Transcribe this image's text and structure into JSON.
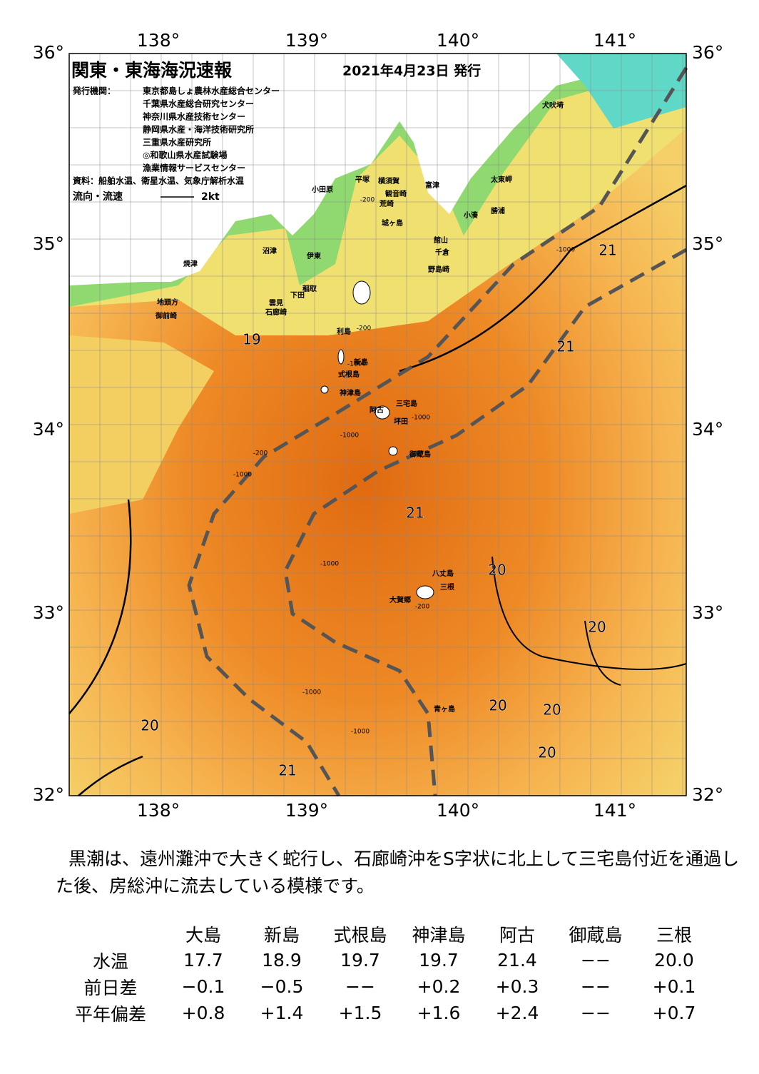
{
  "header": {
    "title": "関東・東海海況速報",
    "date": "2021年4月23日 発行",
    "issuer_label": "発行機関：",
    "issuers": [
      "東京都島しょ農林水産総合センター",
      "千葉県水産総合研究センター",
      "神奈川県水産技術センター",
      "静岡県水産・海洋技術研究所",
      "三重県水産研究所",
      "◎和歌山県水産試験場",
      "漁業情報サービスセンター"
    ],
    "source": "資料：船舶水温、衛星水温、気象庁解析水温",
    "legend_label": "流向・流速",
    "legend_scale": "2kt"
  },
  "map": {
    "lon_labels": [
      "138°",
      "139°",
      "140°",
      "141°"
    ],
    "lat_labels": [
      "36°",
      "35°",
      "34°",
      "33°",
      "32°"
    ],
    "places": [
      "犬吠埼",
      "太東岬",
      "勝浦",
      "小湊",
      "富津",
      "横須賀",
      "観音崎",
      "荒崎",
      "平塚",
      "小田原",
      "館山",
      "千倉",
      "野島崎",
      "沼津",
      "伊東",
      "焼津",
      "稲取",
      "下田",
      "雲見",
      "石廊崎",
      "地頭方",
      "御前崎",
      "利島",
      "新島",
      "式根島",
      "神津島",
      "三宅島",
      "阿古",
      "坪田",
      "御蔵島",
      "八丈島",
      "三根",
      "大賀郷",
      "青ヶ島",
      "城ヶ島"
    ],
    "contour_labels": [
      "21",
      "21",
      "19",
      "21",
      "20",
      "20",
      "20",
      "20",
      "20",
      "20",
      "21",
      "-1000",
      "-200",
      "-200",
      "-1000",
      "-1000",
      "-200",
      "-1000",
      "-1000",
      "-1000",
      "-200",
      "-1000",
      "-1000"
    ]
  },
  "description": "黒潮は、遠州灘沖で大きく蛇行し、石廊崎沖をS字状に北上して三宅島付近を通過した後、房総沖に流去している模様です。",
  "table": {
    "columns": [
      "大島",
      "新島",
      "式根島",
      "神津島",
      "阿古",
      "御蔵島",
      "三根"
    ],
    "rows": [
      {
        "label": "水温",
        "cells": [
          "17.7",
          "18.9",
          "19.7",
          "19.7",
          "21.4",
          "−−",
          "20.0"
        ]
      },
      {
        "label": "前日差",
        "cells": [
          "−0.1",
          "−0.5",
          "−−",
          "+0.2",
          "+0.3",
          "−−",
          "+0.1"
        ]
      },
      {
        "label": "平年偏差",
        "cells": [
          "+0.8",
          "+1.4",
          "+1.5",
          "+1.6",
          "+2.4",
          "−−",
          "+0.7"
        ]
      }
    ]
  }
}
